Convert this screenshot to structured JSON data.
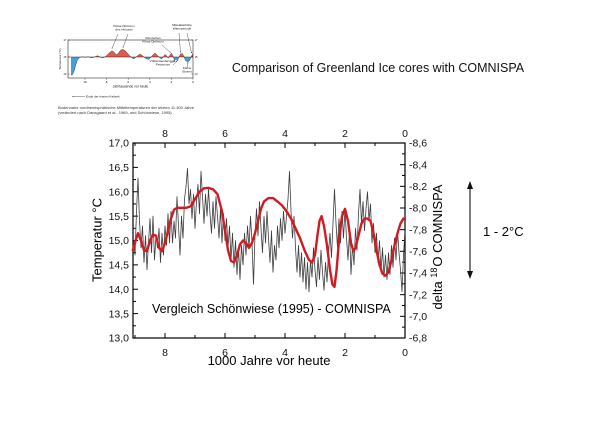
{
  "title": "Comparison of Greenland Ice cores with COMNISPA",
  "annotation_arrow": {
    "label": "1 - 2°C"
  },
  "main_chart": {
    "inplot_label": "Vergleich Schönwiese (1995) - COMNISPA",
    "xlabel": "1000 Jahre vor heute",
    "ylabel_left": "Temperatur °C",
    "ylabel_right_prefix": "delta ",
    "ylabel_right_sup": "18",
    "ylabel_right_suffix": "O  COMNISPA",
    "x_tick_labels": [
      "8",
      "6",
      "4",
      "2",
      "0"
    ],
    "x_tick_values": [
      8,
      6,
      4,
      2,
      0
    ],
    "x_minor_values": [
      9,
      7,
      5,
      3,
      1
    ],
    "y_left_tick_labels": [
      "17,0",
      "16,5",
      "16,0",
      "15,5",
      "15,0",
      "14,5",
      "14,0",
      "13,5",
      "13,0"
    ],
    "y_left_tick_values": [
      17,
      16.5,
      16,
      15.5,
      15,
      14.5,
      14,
      13.5,
      13
    ],
    "y_right_tick_labels": [
      "-8,6",
      "-8,4",
      "-8,2",
      "-8,0",
      "-7,8",
      "-7,6",
      "-7,4",
      "-7,2",
      "-7,0",
      "-6,8"
    ],
    "y_right_tick_values": [
      -8.6,
      -8.4,
      -8.2,
      -8.0,
      -7.8,
      -7.6,
      -7.4,
      -7.2,
      -7.0,
      -6.8
    ]
  },
  "inset": {
    "xlabel": "Jahrtausende vor heute",
    "ylabel": "Temperatur (°C)",
    "x_tick_labels": [
      "10",
      "8",
      "6",
      "4",
      "2",
      "0"
    ],
    "x_tick_values": [
      10,
      8,
      6,
      4,
      2,
      0
    ],
    "y_tick_labels": [
      "17",
      "15",
      "13"
    ],
    "y_tick_values": [
      17,
      15,
      13
    ],
    "annotations": {
      "klima_optimum": "Klima-Optimum\ndes Holozän",
      "roemisches": "Römisches\nKlima-Optimum",
      "mittelalter": "Mittelalterliche\nWarmperiode",
      "voelkerwanderung": "Völkerwanderungs-\nPessimum",
      "kleine_eiszeit": "Kleine\nEiszeit",
      "ende_kaltzeit": "Ende der letzten Kaltzeit"
    },
    "caption_line1": "Bodennahe nordhemisphärische Mitteltemperaturen der letzten 11.300 Jahre",
    "caption_line2": "(verändert nach Dansgaard et al., 1969, und Schönwiese, 1995)",
    "colors": {
      "warm": "#e05a4e",
      "cold": "#44a1d8"
    }
  },
  "colors": {
    "comnispa_red": "#d11a22",
    "icecore_black": "#3d3d3d"
  },
  "chart_data": [
    {
      "type": "line",
      "title": "Vergleich Schönwiese (1995) - COMNISPA",
      "xlabel": "1000 Jahre vor heute",
      "ylabel_left": "Temperatur °C",
      "ylabel_right": "delta 18O COMNISPA",
      "xlim": [
        9.07,
        0
      ],
      "x_reversed_right_to_zero": true,
      "ylim_left": [
        13.0,
        17.0
      ],
      "ylim_right_top_to_bottom": [
        -8.6,
        -6.8
      ],
      "grid": false,
      "legend": "none",
      "series": [
        {
          "name": "greenland-ice-core-temperature",
          "color": "#3d3d3d",
          "x_start": 9.05,
          "x_step": -0.05,
          "values": [
            15.0,
            14.7,
            15.6,
            16.28,
            15.4,
            14.85,
            15.3,
            14.55,
            15.1,
            14.4,
            14.95,
            15.45,
            14.75,
            15.5,
            14.6,
            15.1,
            14.85,
            15.25,
            14.55,
            15.15,
            14.7,
            15.3,
            14.9,
            15.55,
            14.95,
            15.6,
            14.95,
            15.4,
            15.05,
            15.9,
            15.3,
            14.7,
            15.5,
            15.05,
            15.85,
            16.1,
            16.48,
            15.75,
            16.05,
            15.45,
            15.95,
            15.25,
            15.8,
            16.15,
            15.55,
            16.42,
            15.9,
            15.35,
            15.95,
            15.5,
            16.05,
            15.55,
            15.15,
            15.8,
            15.25,
            15.9,
            15.5,
            15.05,
            15.65,
            14.95,
            15.55,
            15.0,
            15.45,
            14.85,
            15.3,
            14.6,
            15.15,
            14.45,
            15.0,
            14.3,
            14.85,
            14.2,
            14.9,
            14.5,
            15.15,
            14.7,
            15.3,
            14.85,
            15.5,
            14.95,
            14.1,
            15.1,
            15.65,
            15.1,
            15.8,
            15.25,
            14.75,
            15.5,
            14.95,
            15.6,
            15.05,
            14.55,
            15.2,
            14.35,
            14.9,
            14.6,
            15.3,
            14.85,
            15.45,
            15.0,
            15.6,
            15.15,
            15.5,
            15.85,
            16.42,
            15.6,
            15.05,
            15.5,
            14.85,
            14.35,
            14.9,
            14.25,
            14.75,
            14.15,
            14.65,
            14.0,
            14.55,
            13.95,
            14.6,
            14.25,
            14.85,
            14.4,
            14.05,
            14.65,
            14.2,
            14.8,
            14.35,
            13.98,
            14.55,
            14.15,
            14.75,
            15.15,
            14.65,
            15.35,
            16.05,
            15.35,
            14.85,
            15.45,
            14.95,
            15.6,
            15.05,
            15.65,
            15.05,
            14.6,
            15.2,
            14.3,
            14.9,
            14.5,
            15.25,
            14.8,
            15.55,
            16.05,
            15.35,
            15.8,
            15.2,
            15.65,
            16.0,
            15.4,
            15.75,
            14.95,
            15.35,
            14.75,
            15.15,
            14.55,
            15.0,
            14.35,
            14.85,
            14.25,
            14.7,
            14.2,
            14.75,
            14.3,
            14.9,
            14.45,
            15.05,
            14.6,
            15.2,
            14.75,
            14.4,
            13.95,
            14.7,
            15.2
          ]
        },
        {
          "name": "comnispa-smoothed",
          "color": "#d11a22",
          "points": [
            [
              9.07,
              14.8
            ],
            [
              8.98,
              15.0
            ],
            [
              8.9,
              15.15
            ],
            [
              8.8,
              15.0
            ],
            [
              8.7,
              14.8
            ],
            [
              8.6,
              14.78
            ],
            [
              8.5,
              15.0
            ],
            [
              8.4,
              15.12
            ],
            [
              8.3,
              15.1
            ],
            [
              8.2,
              14.85
            ],
            [
              8.1,
              14.78
            ],
            [
              8.0,
              14.95
            ],
            [
              7.9,
              15.2
            ],
            [
              7.8,
              15.45
            ],
            [
              7.7,
              15.63
            ],
            [
              7.6,
              15.67
            ],
            [
              7.45,
              15.67
            ],
            [
              7.3,
              15.67
            ],
            [
              7.15,
              15.7
            ],
            [
              7.0,
              15.85
            ],
            [
              6.85,
              16.0
            ],
            [
              6.7,
              16.07
            ],
            [
              6.55,
              16.08
            ],
            [
              6.4,
              16.05
            ],
            [
              6.25,
              15.95
            ],
            [
              6.1,
              15.6
            ],
            [
              6.0,
              15.2
            ],
            [
              5.9,
              14.8
            ],
            [
              5.8,
              14.58
            ],
            [
              5.7,
              14.55
            ],
            [
              5.6,
              14.7
            ],
            [
              5.5,
              14.92
            ],
            [
              5.4,
              15.0
            ],
            [
              5.3,
              14.95
            ],
            [
              5.2,
              14.85
            ],
            [
              5.1,
              14.95
            ],
            [
              5.0,
              15.15
            ],
            [
              4.9,
              15.4
            ],
            [
              4.8,
              15.65
            ],
            [
              4.7,
              15.8
            ],
            [
              4.55,
              15.87
            ],
            [
              4.4,
              15.87
            ],
            [
              4.25,
              15.8
            ],
            [
              4.1,
              15.72
            ],
            [
              3.95,
              15.6
            ],
            [
              3.8,
              15.45
            ],
            [
              3.65,
              15.25
            ],
            [
              3.5,
              15.05
            ],
            [
              3.35,
              14.8
            ],
            [
              3.2,
              14.6
            ],
            [
              3.1,
              14.55
            ],
            [
              3.0,
              14.7
            ],
            [
              2.92,
              15.1
            ],
            [
              2.85,
              15.4
            ],
            [
              2.78,
              15.5
            ],
            [
              2.7,
              15.3
            ],
            [
              2.6,
              14.9
            ],
            [
              2.5,
              14.4
            ],
            [
              2.42,
              14.1
            ],
            [
              2.35,
              14.05
            ],
            [
              2.28,
              14.4
            ],
            [
              2.2,
              15.0
            ],
            [
              2.1,
              15.5
            ],
            [
              2.0,
              15.65
            ],
            [
              1.9,
              15.4
            ],
            [
              1.8,
              14.95
            ],
            [
              1.72,
              14.78
            ],
            [
              1.65,
              14.85
            ],
            [
              1.55,
              15.1
            ],
            [
              1.45,
              15.35
            ],
            [
              1.35,
              15.45
            ],
            [
              1.25,
              15.45
            ],
            [
              1.15,
              15.4
            ],
            [
              1.05,
              15.15
            ],
            [
              0.95,
              14.8
            ],
            [
              0.85,
              14.5
            ],
            [
              0.75,
              14.32
            ],
            [
              0.65,
              14.28
            ],
            [
              0.55,
              14.35
            ],
            [
              0.45,
              14.6
            ],
            [
              0.35,
              14.9
            ],
            [
              0.25,
              15.15
            ],
            [
              0.15,
              15.35
            ],
            [
              0.05,
              15.45
            ],
            [
              0.0,
              15.45
            ]
          ]
        }
      ]
    },
    {
      "type": "area",
      "title": "inset-hemispheric-mean-temperature",
      "xlabel": "Jahrtausende vor heute",
      "ylabel": "Temperatur (°C)",
      "xlim": [
        11.3,
        0
      ],
      "ylim": [
        12.5,
        17
      ],
      "baseline": 15,
      "points": [
        [
          11.3,
          12.85
        ],
        [
          11.15,
          12.95
        ],
        [
          11.0,
          13.4
        ],
        [
          10.85,
          14.1
        ],
        [
          10.7,
          14.65
        ],
        [
          10.5,
          14.95
        ],
        [
          10.3,
          15.02
        ],
        [
          10.0,
          14.97
        ],
        [
          9.7,
          15.02
        ],
        [
          9.4,
          14.92
        ],
        [
          9.1,
          15.0
        ],
        [
          8.85,
          15.15
        ],
        [
          8.6,
          15.0
        ],
        [
          8.35,
          14.9
        ],
        [
          8.1,
          15.05
        ],
        [
          7.9,
          15.3
        ],
        [
          7.7,
          15.55
        ],
        [
          7.5,
          15.72
        ],
        [
          7.3,
          15.55
        ],
        [
          7.1,
          15.25
        ],
        [
          6.9,
          15.45
        ],
        [
          6.7,
          15.8
        ],
        [
          6.5,
          15.9
        ],
        [
          6.3,
          15.75
        ],
        [
          6.1,
          15.5
        ],
        [
          5.9,
          15.2
        ],
        [
          5.7,
          14.95
        ],
        [
          5.5,
          14.78
        ],
        [
          5.3,
          14.95
        ],
        [
          5.1,
          15.18
        ],
        [
          4.9,
          15.35
        ],
        [
          4.7,
          15.18
        ],
        [
          4.5,
          14.95
        ],
        [
          4.3,
          14.78
        ],
        [
          4.1,
          14.72
        ],
        [
          3.9,
          14.95
        ],
        [
          3.7,
          15.25
        ],
        [
          3.5,
          15.45
        ],
        [
          3.3,
          15.2
        ],
        [
          3.1,
          14.92
        ],
        [
          2.9,
          14.78
        ],
        [
          2.75,
          15.0
        ],
        [
          2.6,
          15.3
        ],
        [
          2.45,
          15.15
        ],
        [
          2.3,
          14.85
        ],
        [
          2.15,
          15.2
        ],
        [
          2.0,
          15.45
        ],
        [
          1.85,
          15.1
        ],
        [
          1.7,
          14.6
        ],
        [
          1.55,
          14.75
        ],
        [
          1.45,
          14.55
        ],
        [
          1.3,
          15.0
        ],
        [
          1.15,
          15.35
        ],
        [
          1.0,
          15.42
        ],
        [
          0.85,
          15.1
        ],
        [
          0.7,
          14.6
        ],
        [
          0.5,
          14.4
        ],
        [
          0.35,
          14.55
        ],
        [
          0.2,
          14.9
        ],
        [
          0.1,
          15.2
        ],
        [
          0.0,
          15.4
        ]
      ]
    }
  ]
}
